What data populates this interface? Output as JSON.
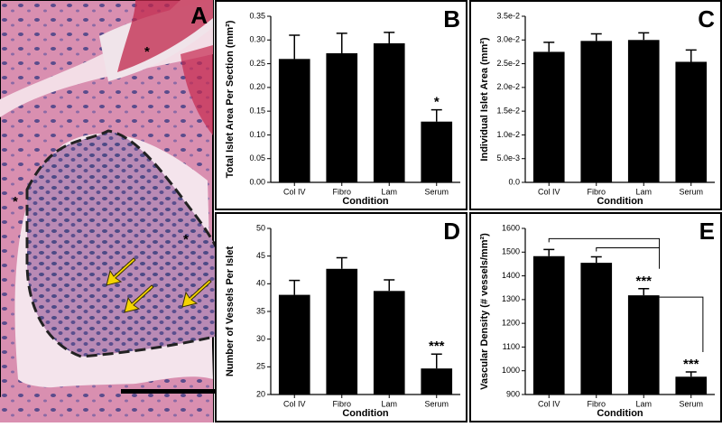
{
  "image_panel": {
    "label": "A",
    "markers": [
      "*",
      "*",
      "*"
    ]
  },
  "chart_data": [
    {
      "type": "bar",
      "panel": "B",
      "ylabel": "Total Islet Area Per Section (mm²)",
      "xlabel": "Condition",
      "categories": [
        "Col IV",
        "Fibro",
        "Lam",
        "Serum"
      ],
      "values": [
        0.26,
        0.272,
        0.293,
        0.128
      ],
      "errors": [
        0.05,
        0.042,
        0.023,
        0.025
      ],
      "color": "#000000",
      "ylim": [
        0,
        0.35
      ],
      "yticks": [
        {
          "value": 0,
          "label": "0.00"
        },
        {
          "value": 0.05,
          "label": "0.05"
        },
        {
          "value": 0.1,
          "label": "0.10"
        },
        {
          "value": 0.15,
          "label": "0.15"
        },
        {
          "value": 0.2,
          "label": "0.20"
        },
        {
          "value": 0.25,
          "label": "0.25"
        },
        {
          "value": 0.3,
          "label": "0.30"
        },
        {
          "value": 0.35,
          "label": "0.35"
        }
      ],
      "annotations": [
        {
          "text": "*",
          "category": "Serum"
        }
      ]
    },
    {
      "type": "bar",
      "panel": "C",
      "ylabel": "Individual Islet Area (mm²)",
      "xlabel": "Condition",
      "categories": [
        "Col IV",
        "Fibro",
        "Lam",
        "Serum"
      ],
      "values": [
        0.0275,
        0.0298,
        0.03,
        0.0254
      ],
      "errors": [
        0.002,
        0.0015,
        0.0015,
        0.0025
      ],
      "color": "#000000",
      "ylim": [
        0,
        0.035
      ],
      "yticks": [
        {
          "value": 0,
          "label": "0.0"
        },
        {
          "value": 0.005,
          "label": "5.0e-3"
        },
        {
          "value": 0.01,
          "label": "1.0e-2"
        },
        {
          "value": 0.015,
          "label": "1.5e-2"
        },
        {
          "value": 0.02,
          "label": "2.0e-2"
        },
        {
          "value": 0.025,
          "label": "2.5e-2"
        },
        {
          "value": 0.03,
          "label": "3.0e-2"
        },
        {
          "value": 0.035,
          "label": "3.5e-2"
        }
      ],
      "annotations": []
    },
    {
      "type": "bar",
      "panel": "D",
      "ylabel": "Number of Vessels Per Islet",
      "xlabel": "Condition",
      "categories": [
        "Col IV",
        "Fibro",
        "Lam",
        "Serum"
      ],
      "values": [
        38,
        42.7,
        38.7,
        24.7
      ],
      "errors": [
        2.6,
        2,
        2,
        2.6
      ],
      "color": "#000000",
      "ylim": [
        20,
        50
      ],
      "yticks": [
        20,
        25,
        30,
        35,
        40,
        45,
        50
      ],
      "annotations": [
        {
          "text": "***",
          "category": "Serum"
        }
      ]
    },
    {
      "type": "bar",
      "panel": "E",
      "ylabel": "Vascular Density (# vessels/mm²)",
      "xlabel": "Condition",
      "categories": [
        "Col IV",
        "Fibro",
        "Lam",
        "Serum"
      ],
      "values": [
        1483,
        1455,
        1318,
        975
      ],
      "errors": [
        28,
        25,
        28,
        20
      ],
      "color": "#000000",
      "ylim": [
        900,
        1600
      ],
      "yticks": [
        900,
        1000,
        1100,
        1200,
        1300,
        1400,
        1500,
        1600
      ],
      "annotations": [
        {
          "text": "***",
          "category": "Lam"
        },
        {
          "text": "***",
          "category": "Serum"
        }
      ]
    }
  ]
}
